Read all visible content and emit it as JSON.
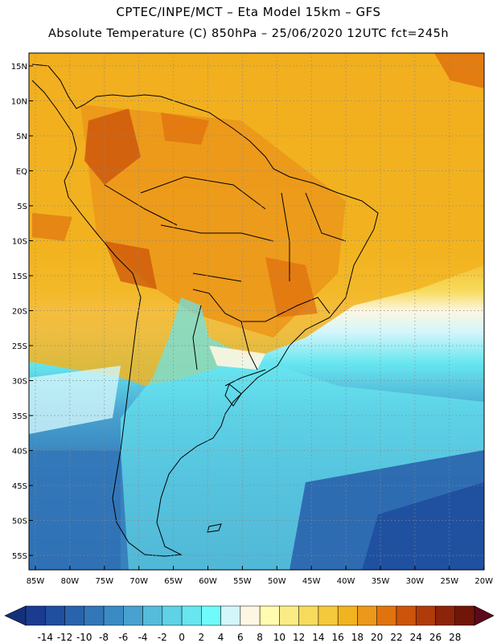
{
  "header": {
    "line1": "CPTEC/INPE/MCT –  Eta Model 15km – GFS",
    "line2": "Absolute Temperature (C) 850hPa – 25/06/2020 12UTC fct=245h"
  },
  "axes": {
    "lat_labels": [
      "15N",
      "10N",
      "5N",
      "EQ",
      "5S",
      "10S",
      "15S",
      "20S",
      "25S",
      "30S",
      "35S",
      "40S",
      "45S",
      "50S",
      "55S"
    ],
    "lon_labels": [
      "85W",
      "80W",
      "75W",
      "70W",
      "65W",
      "60W",
      "55W",
      "50W",
      "45W",
      "40W",
      "35W",
      "30W",
      "25W",
      "20W"
    ]
  },
  "colorbar": {
    "labels": [
      "-14",
      "-12",
      "-10",
      "-8",
      "-6",
      "-4",
      "-2",
      "0",
      "2",
      "4",
      "6",
      "8",
      "10",
      "12",
      "14",
      "16",
      "18",
      "20",
      "22",
      "24",
      "26",
      "28"
    ],
    "colors": [
      "#1a3b8f",
      "#1f4f9e",
      "#2a63ad",
      "#3277b8",
      "#3a8bc4",
      "#47a2cf",
      "#55bcdc",
      "#5fd2e6",
      "#67e6ef",
      "#6ffbfb",
      "#d3f6fb",
      "#fdf6e3",
      "#fffbb0",
      "#fbeb84",
      "#f7db5c",
      "#f4c93b",
      "#f2b320",
      "#ec981a",
      "#e1730f",
      "#cc540b",
      "#b03a0a",
      "#8c2409",
      "#6f1608"
    ],
    "low_arrow_color": "#13307a",
    "high_arrow_color": "#5c0a1a"
  },
  "map": {
    "ocean_warm": "#f0a21a",
    "ocean_cold": "#2a63ad",
    "region_labels": []
  }
}
